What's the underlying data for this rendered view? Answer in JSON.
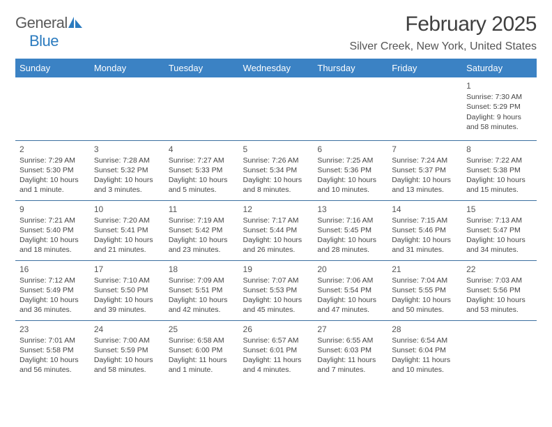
{
  "logo": {
    "text1": "General",
    "text2": "Blue",
    "text1_color": "#5a5a5a",
    "text2_color": "#2b7bbf",
    "sail_color": "#2b7bbf"
  },
  "title": "February 2025",
  "location": "Silver Creek, New York, United States",
  "header_bg": "#3b82c4",
  "header_text_color": "#ffffff",
  "divider_color": "#3b6fa0",
  "days_of_week": [
    "Sunday",
    "Monday",
    "Tuesday",
    "Wednesday",
    "Thursday",
    "Friday",
    "Saturday"
  ],
  "weeks": [
    [
      null,
      null,
      null,
      null,
      null,
      null,
      {
        "n": "1",
        "sunrise": "7:30 AM",
        "sunset": "5:29 PM",
        "daylight": "9 hours and 58 minutes."
      }
    ],
    [
      {
        "n": "2",
        "sunrise": "7:29 AM",
        "sunset": "5:30 PM",
        "daylight": "10 hours and 1 minute."
      },
      {
        "n": "3",
        "sunrise": "7:28 AM",
        "sunset": "5:32 PM",
        "daylight": "10 hours and 3 minutes."
      },
      {
        "n": "4",
        "sunrise": "7:27 AM",
        "sunset": "5:33 PM",
        "daylight": "10 hours and 5 minutes."
      },
      {
        "n": "5",
        "sunrise": "7:26 AM",
        "sunset": "5:34 PM",
        "daylight": "10 hours and 8 minutes."
      },
      {
        "n": "6",
        "sunrise": "7:25 AM",
        "sunset": "5:36 PM",
        "daylight": "10 hours and 10 minutes."
      },
      {
        "n": "7",
        "sunrise": "7:24 AM",
        "sunset": "5:37 PM",
        "daylight": "10 hours and 13 minutes."
      },
      {
        "n": "8",
        "sunrise": "7:22 AM",
        "sunset": "5:38 PM",
        "daylight": "10 hours and 15 minutes."
      }
    ],
    [
      {
        "n": "9",
        "sunrise": "7:21 AM",
        "sunset": "5:40 PM",
        "daylight": "10 hours and 18 minutes."
      },
      {
        "n": "10",
        "sunrise": "7:20 AM",
        "sunset": "5:41 PM",
        "daylight": "10 hours and 21 minutes."
      },
      {
        "n": "11",
        "sunrise": "7:19 AM",
        "sunset": "5:42 PM",
        "daylight": "10 hours and 23 minutes."
      },
      {
        "n": "12",
        "sunrise": "7:17 AM",
        "sunset": "5:44 PM",
        "daylight": "10 hours and 26 minutes."
      },
      {
        "n": "13",
        "sunrise": "7:16 AM",
        "sunset": "5:45 PM",
        "daylight": "10 hours and 28 minutes."
      },
      {
        "n": "14",
        "sunrise": "7:15 AM",
        "sunset": "5:46 PM",
        "daylight": "10 hours and 31 minutes."
      },
      {
        "n": "15",
        "sunrise": "7:13 AM",
        "sunset": "5:47 PM",
        "daylight": "10 hours and 34 minutes."
      }
    ],
    [
      {
        "n": "16",
        "sunrise": "7:12 AM",
        "sunset": "5:49 PM",
        "daylight": "10 hours and 36 minutes."
      },
      {
        "n": "17",
        "sunrise": "7:10 AM",
        "sunset": "5:50 PM",
        "daylight": "10 hours and 39 minutes."
      },
      {
        "n": "18",
        "sunrise": "7:09 AM",
        "sunset": "5:51 PM",
        "daylight": "10 hours and 42 minutes."
      },
      {
        "n": "19",
        "sunrise": "7:07 AM",
        "sunset": "5:53 PM",
        "daylight": "10 hours and 45 minutes."
      },
      {
        "n": "20",
        "sunrise": "7:06 AM",
        "sunset": "5:54 PM",
        "daylight": "10 hours and 47 minutes."
      },
      {
        "n": "21",
        "sunrise": "7:04 AM",
        "sunset": "5:55 PM",
        "daylight": "10 hours and 50 minutes."
      },
      {
        "n": "22",
        "sunrise": "7:03 AM",
        "sunset": "5:56 PM",
        "daylight": "10 hours and 53 minutes."
      }
    ],
    [
      {
        "n": "23",
        "sunrise": "7:01 AM",
        "sunset": "5:58 PM",
        "daylight": "10 hours and 56 minutes."
      },
      {
        "n": "24",
        "sunrise": "7:00 AM",
        "sunset": "5:59 PM",
        "daylight": "10 hours and 58 minutes."
      },
      {
        "n": "25",
        "sunrise": "6:58 AM",
        "sunset": "6:00 PM",
        "daylight": "11 hours and 1 minute."
      },
      {
        "n": "26",
        "sunrise": "6:57 AM",
        "sunset": "6:01 PM",
        "daylight": "11 hours and 4 minutes."
      },
      {
        "n": "27",
        "sunrise": "6:55 AM",
        "sunset": "6:03 PM",
        "daylight": "11 hours and 7 minutes."
      },
      {
        "n": "28",
        "sunrise": "6:54 AM",
        "sunset": "6:04 PM",
        "daylight": "11 hours and 10 minutes."
      },
      null
    ]
  ],
  "labels": {
    "sunrise": "Sunrise: ",
    "sunset": "Sunset: ",
    "daylight": "Daylight: "
  }
}
